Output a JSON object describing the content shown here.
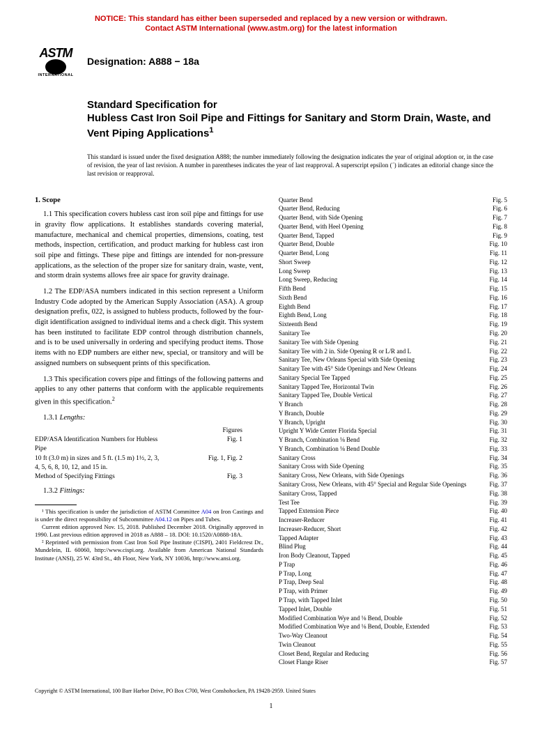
{
  "notice": {
    "line1": "NOTICE: This standard has either been superseded and replaced by a new version or withdrawn.",
    "line2": "Contact ASTM International (www.astm.org) for the latest information"
  },
  "logo": {
    "top": "ASTM",
    "bottom": "INTERNATIONAL"
  },
  "designation": "Designation: A888 − 18a",
  "title": {
    "prefix": "Standard Specification for",
    "main": "Hubless Cast Iron Soil Pipe and Fittings for Sanitary and Storm Drain, Waste, and Vent Piping Applications",
    "sup": "1"
  },
  "issue_note": "This standard is issued under the fixed designation A888; the number immediately following the designation indicates the year of original adoption or, in the case of revision, the year of last revision. A number in parentheses indicates the year of last reapproval. A superscript epsilon (´) indicates an editorial change since the last revision or reapproval.",
  "scope": {
    "head": "1. Scope",
    "p11": "1.1 This specification covers hubless cast iron soil pipe and fittings for use in gravity flow applications. It establishes standards covering material, manufacture, mechanical and chemical properties, dimensions, coating, test methods, inspection, certification, and product marking for hubless cast iron soil pipe and fittings. These pipe and fittings are intended for non-pressure applications, as the selection of the proper size for sanitary drain, waste, vent, and storm drain systems allows free air space for gravity drainage.",
    "p12": "1.2 The EDP/ASA numbers indicated in this section represent a Uniform Industry Code adopted by the American Supply Association (ASA). A group designation prefix, 022, is assigned to hubless products, followed by the four-digit identification assigned to individual items and a check digit. This system has been instituted to facilitate EDP control through distribution channels, and is to be used universally in ordering and specifying product items. Those items with no EDP numbers are either new, special, or transitory and will be assigned numbers on subsequent prints of this specification.",
    "p13_a": "1.3 This specification covers pipe and fittings of the following patterns and applies to any other patterns that conform with the applicable requirements given in this specification.",
    "p13_sup": "2",
    "s131": "1.3.1 Lengths:",
    "s132": "1.3.2 Fittings:"
  },
  "lengths": {
    "header": "Figures",
    "rows": [
      {
        "l": "EDP/ASA Identification Numbers for Hubless Pipe",
        "r": "Fig. 1"
      },
      {
        "l": "10 ft (3.0 m) in sizes and 5 ft. (1.5 m) 1½, 2, 3, 4, 5, 6, 8, 10, 12, and 15 in.",
        "r": "Fig. 1, Fig. 2"
      },
      {
        "l": "Method of Specifying Fittings",
        "r": "Fig. 3"
      }
    ]
  },
  "footnotes": {
    "f1": "¹ This specification is under the jurisdiction of ASTM Committee A04 on Iron Castings and is under the direct responsibility of Subcommittee A04.12 on Pipes and Tubes.",
    "f1b": "Current edition approved Nov. 15, 2018. Published December 2018. Originally approved in 1990. Last previous edition approved in 2018 as A888 – 18. DOI: 10.1520/A0888-18A.",
    "f2": "² Reprinted with permission from Cast Iron Soil Pipe Institute (CISPI), 2401 Fieldcrest Dr., Mundelein, IL 60060, http://www.cispi.org. Available from American National Standards Institute (ANSI), 25 W. 43rd St., 4th Floor, New York, NY 10036, http://www.ansi.org."
  },
  "fittings": [
    {
      "l": "Quarter Bend",
      "r": "Fig. 5"
    },
    {
      "l": "Quarter Bend, Reducing",
      "r": "Fig. 6"
    },
    {
      "l": "Quarter Bend, with Side Opening",
      "r": "Fig. 7"
    },
    {
      "l": "Quarter Bend, with Heel Opening",
      "r": "Fig. 8"
    },
    {
      "l": "Quarter Bend, Tapped",
      "r": "Fig. 9"
    },
    {
      "l": "Quarter Bend, Double",
      "r": "Fig. 10"
    },
    {
      "l": "Quarter Bend, Long",
      "r": "Fig. 11"
    },
    {
      "l": "Short Sweep",
      "r": "Fig. 12"
    },
    {
      "l": "Long Sweep",
      "r": "Fig. 13"
    },
    {
      "l": "Long Sweep, Reducing",
      "r": "Fig. 14"
    },
    {
      "l": "Fifth Bend",
      "r": "Fig. 15"
    },
    {
      "l": "Sixth Bend",
      "r": "Fig. 16"
    },
    {
      "l": "Eighth Bend",
      "r": "Fig. 17"
    },
    {
      "l": "Eighth Bend, Long",
      "r": "Fig. 18"
    },
    {
      "l": "Sixteenth Bend",
      "r": "Fig. 19"
    },
    {
      "l": "Sanitary Tee",
      "r": "Fig. 20"
    },
    {
      "l": "Sanitary Tee with Side Opening",
      "r": "Fig. 21"
    },
    {
      "l": "Sanitary Tee with 2 in. Side Opening R or L/R and L",
      "r": "Fig. 22"
    },
    {
      "l": "Sanitary Tee, New Orleans Special with Side Opening",
      "r": "Fig. 23"
    },
    {
      "l": "Sanitary Tee with 45° Side Openings and New Orleans",
      "r": "Fig. 24"
    },
    {
      "l": "Sanitary Special Tee Tapped",
      "r": "Fig. 25"
    },
    {
      "l": "Sanitary Tapped Tee, Horizontal Twin",
      "r": "Fig. 26"
    },
    {
      "l": "Sanitary Tapped Tee, Double Vertical",
      "r": "Fig. 27"
    },
    {
      "l": "Y Branch",
      "r": "Fig. 28"
    },
    {
      "l": "Y Branch, Double",
      "r": "Fig. 29"
    },
    {
      "l": "Y Branch, Upright",
      "r": "Fig. 30"
    },
    {
      "l": "Upright Y Wide Center Florida Special",
      "r": "Fig. 31"
    },
    {
      "l": "Y Branch, Combination ⅛ Bend",
      "r": "Fig. 32"
    },
    {
      "l": "Y Branch, Combination ⅛ Bend Double",
      "r": "Fig. 33"
    },
    {
      "l": "Sanitary Cross",
      "r": "Fig. 34"
    },
    {
      "l": "Sanitary Cross with Side Opening",
      "r": "Fig. 35"
    },
    {
      "l": "Sanitary Cross, New Orleans, with Side Openings",
      "r": "Fig. 36"
    },
    {
      "l": "Sanitary Cross, New Orleans, with 45° Special and Regular Side Openings",
      "r": "Fig. 37"
    },
    {
      "l": "Sanitary Cross, Tapped",
      "r": "Fig. 38"
    },
    {
      "l": "Test Tee",
      "r": "Fig. 39"
    },
    {
      "l": "Tapped Extension Piece",
      "r": "Fig. 40"
    },
    {
      "l": "Increaser-Reducer",
      "r": "Fig. 41"
    },
    {
      "l": "Increaser-Reducer, Short",
      "r": "Fig. 42"
    },
    {
      "l": "Tapped Adapter",
      "r": "Fig. 43"
    },
    {
      "l": "Blind Plug",
      "r": "Fig. 44"
    },
    {
      "l": "Iron Body Cleanout, Tapped",
      "r": "Fig. 45"
    },
    {
      "l": "P Trap",
      "r": "Fig. 46"
    },
    {
      "l": "P Trap, Long",
      "r": "Fig. 47"
    },
    {
      "l": "P Trap, Deep Seal",
      "r": "Fig. 48"
    },
    {
      "l": "P Trap, with Primer",
      "r": "Fig. 49"
    },
    {
      "l": "P Trap, with Tapped Inlet",
      "r": "Fig. 50"
    },
    {
      "l": "Tapped Inlet, Double",
      "r": "Fig. 51"
    },
    {
      "l": "Modified Combination Wye and ⅛ Bend, Double",
      "r": "Fig. 52"
    },
    {
      "l": "Modified Combination Wye and ⅛ Bend, Double, Extended",
      "r": "Fig. 53"
    },
    {
      "l": "Two-Way Cleanout",
      "r": "Fig. 54"
    },
    {
      "l": "Twin Cleanout",
      "r": "Fig. 55"
    },
    {
      "l": "Closet Bend, Regular and Reducing",
      "r": "Fig. 56"
    },
    {
      "l": "Closet Flange Riser",
      "r": "Fig. 57"
    }
  ],
  "copyright": "Copyright © ASTM International, 100 Barr Harbor Drive, PO Box C700, West Conshohocken, PA 19428-2959. United States",
  "pagenum": "1"
}
